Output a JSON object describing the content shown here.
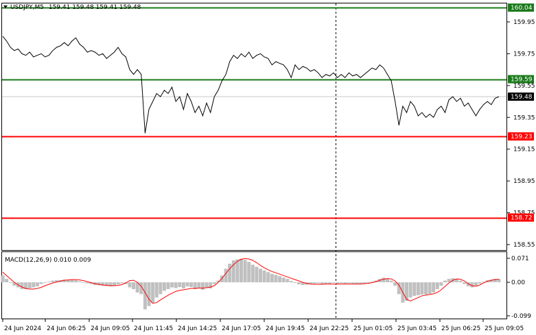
{
  "header": {
    "symbol": "USDJPY,M5",
    "ohlc": "159.41 159.48 159.41 159.48"
  },
  "macd_header": {
    "label": "MACD(12,26,9) 0.010 0.009"
  },
  "colors": {
    "support_resistance_green": "#1a7a1a",
    "level_red": "#ff0000",
    "price_line": "#000000",
    "macd_histogram": "#c0c0c0",
    "macd_signal": "#ff0000",
    "current_price_tag": "#000000"
  },
  "chart_data": [
    {
      "type": "line",
      "title": "USDJPY,M5",
      "ylim": [
        158.48,
        160.1
      ],
      "y_ticks": [
        "159.95",
        "159.75",
        "159.55",
        "159.35",
        "159.15",
        "158.95",
        "158.75",
        "158.55"
      ],
      "x_ticks": [
        "24 Jun 2024",
        "24 Jun 06:25",
        "24 Jun 09:05",
        "24 Jun 11:45",
        "24 Jun 14:25",
        "24 Jun 17:05",
        "24 Jun 19:45",
        "24 Jun 22:25",
        "25 Jun 01:05",
        "25 Jun 03:45",
        "25 Jun 06:25",
        "25 Jun 09:05"
      ],
      "horizontal_levels": [
        {
          "value": 160.04,
          "label": "160.04",
          "color": "#1a7a1a"
        },
        {
          "value": 159.59,
          "label": "159.59",
          "color": "#1a7a1a"
        },
        {
          "value": 159.23,
          "label": "159.23",
          "color": "#ff0000"
        },
        {
          "value": 158.72,
          "label": "158.72",
          "color": "#ff0000"
        }
      ],
      "current_price": {
        "value": 159.48,
        "label": "159.48"
      },
      "series": [
        {
          "values": [
            159.86,
            159.83,
            159.79,
            159.77,
            159.78,
            159.75,
            159.74,
            159.76,
            159.73,
            159.74,
            159.75,
            159.73,
            159.74,
            159.77,
            159.79,
            159.8,
            159.82,
            159.8,
            159.83,
            159.85,
            159.81,
            159.79,
            159.76,
            159.77,
            159.76,
            159.74,
            159.75,
            159.72,
            159.74,
            159.76,
            159.79,
            159.75,
            159.73,
            159.65,
            159.62,
            159.65,
            159.62,
            159.25,
            159.4,
            159.45,
            159.5,
            159.48,
            159.52,
            159.5,
            159.54,
            159.45,
            159.48,
            159.4,
            159.5,
            159.45,
            159.38,
            159.42,
            159.36,
            159.44,
            159.38,
            159.48,
            159.52,
            159.58,
            159.62,
            159.7,
            159.74,
            159.72,
            159.75,
            159.73,
            159.76,
            159.72,
            159.74,
            159.75,
            159.73,
            159.72,
            159.68,
            159.7,
            159.69,
            159.68,
            159.65,
            159.6,
            159.68,
            159.65,
            159.67,
            159.66,
            159.64,
            159.65,
            159.63,
            159.6,
            159.62,
            159.61,
            159.63,
            159.6,
            159.62,
            159.6,
            159.63,
            159.61,
            159.62,
            159.6,
            159.62,
            159.64,
            159.66,
            159.65,
            159.68,
            159.66,
            159.62,
            159.58,
            159.45,
            159.3,
            159.42,
            159.38,
            159.45,
            159.42,
            159.36,
            159.38,
            159.35,
            159.37,
            159.35,
            159.4,
            159.42,
            159.38,
            159.46,
            159.48,
            159.45,
            159.47,
            159.42,
            159.44,
            159.4,
            159.36,
            159.4,
            159.43,
            159.45,
            159.43,
            159.47,
            159.48
          ]
        }
      ]
    },
    {
      "type": "bar",
      "title": "MACD(12,26,9) 0.010 0.009",
      "ylim": [
        -0.099,
        0.071
      ],
      "y_ticks": [
        "0.071",
        "0.00",
        "-0.099"
      ],
      "series": [
        {
          "name": "MACD",
          "values": [
            0.02,
            0.01,
            0.0,
            -0.01,
            -0.015,
            -0.02,
            -0.02,
            -0.018,
            -0.015,
            -0.012,
            -0.005,
            0.0,
            0.002,
            0.005,
            0.006,
            0.006,
            0.008,
            0.007,
            0.008,
            0.006,
            0.003,
            0.0,
            -0.003,
            -0.005,
            -0.008,
            -0.009,
            -0.01,
            -0.011,
            -0.012,
            -0.01,
            -0.006,
            -0.003,
            -0.005,
            -0.015,
            -0.02,
            -0.03,
            -0.035,
            -0.08,
            -0.07,
            -0.06,
            -0.045,
            -0.035,
            -0.025,
            -0.02,
            -0.015,
            -0.017,
            -0.014,
            -0.018,
            -0.012,
            -0.014,
            -0.02,
            -0.018,
            -0.022,
            -0.016,
            -0.018,
            -0.005,
            0.005,
            0.02,
            0.04,
            0.055,
            0.065,
            0.068,
            0.07,
            0.066,
            0.06,
            0.052,
            0.046,
            0.04,
            0.035,
            0.03,
            0.025,
            0.022,
            0.018,
            0.014,
            0.01,
            0.004,
            0.0,
            -0.006,
            -0.008,
            -0.007,
            -0.006,
            -0.004,
            -0.003,
            -0.005,
            -0.004,
            -0.004,
            -0.002,
            -0.004,
            -0.003,
            -0.004,
            -0.003,
            -0.004,
            -0.004,
            -0.005,
            -0.004,
            -0.002,
            0.002,
            0.005,
            0.01,
            0.014,
            0.01,
            0.005,
            -0.01,
            -0.035,
            -0.06,
            -0.055,
            -0.045,
            -0.04,
            -0.038,
            -0.036,
            -0.036,
            -0.034,
            -0.03,
            -0.02,
            -0.01,
            0.005,
            0.01,
            0.012,
            0.01,
            0.005,
            -0.005,
            -0.012,
            -0.015,
            -0.01,
            -0.004,
            0.002,
            0.006,
            0.008,
            0.01,
            0.01
          ]
        },
        {
          "name": "Signal",
          "values": [
            0.03,
            0.02,
            0.01,
            0.0,
            -0.008,
            -0.014,
            -0.018,
            -0.02,
            -0.02,
            -0.018,
            -0.015,
            -0.01,
            -0.006,
            -0.002,
            0.001,
            0.004,
            0.006,
            0.007,
            0.008,
            0.008,
            0.007,
            0.005,
            0.002,
            -0.001,
            -0.004,
            -0.006,
            -0.008,
            -0.009,
            -0.01,
            -0.01,
            -0.009,
            -0.007,
            -0.002,
            0.005,
            0.006,
            0.0,
            -0.012,
            -0.03,
            -0.05,
            -0.062,
            -0.06,
            -0.052,
            -0.045,
            -0.038,
            -0.032,
            -0.027,
            -0.024,
            -0.022,
            -0.02,
            -0.018,
            -0.018,
            -0.017,
            -0.017,
            -0.016,
            -0.014,
            -0.01,
            0.0,
            0.012,
            0.026,
            0.04,
            0.052,
            0.062,
            0.068,
            0.07,
            0.069,
            0.065,
            0.058,
            0.05,
            0.043,
            0.037,
            0.032,
            0.028,
            0.024,
            0.02,
            0.016,
            0.012,
            0.008,
            0.004,
            0.0,
            -0.003,
            -0.005,
            -0.006,
            -0.006,
            -0.006,
            -0.005,
            -0.005,
            -0.005,
            -0.005,
            -0.005,
            -0.005,
            -0.005,
            -0.005,
            -0.005,
            -0.005,
            -0.004,
            -0.003,
            -0.001,
            0.002,
            0.006,
            0.009,
            0.011,
            0.01,
            0.004,
            -0.008,
            -0.03,
            -0.05,
            -0.055,
            -0.05,
            -0.045,
            -0.04,
            -0.038,
            -0.036,
            -0.034,
            -0.03,
            -0.022,
            -0.012,
            -0.002,
            0.006,
            0.01,
            0.009,
            0.004,
            -0.004,
            -0.01,
            -0.012,
            -0.008,
            -0.002,
            0.003,
            0.006,
            0.008,
            0.009
          ]
        }
      ]
    }
  ]
}
